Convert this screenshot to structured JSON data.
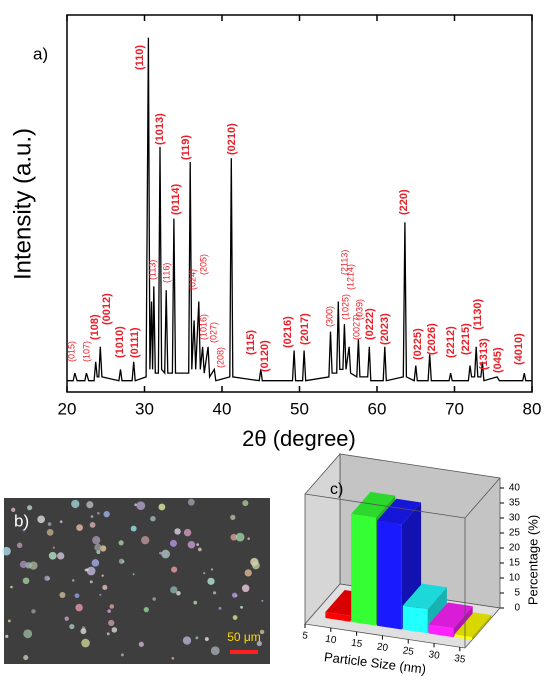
{
  "chart_data": [
    {
      "type": "line",
      "panel_label": "a)",
      "x_label": "2θ (degree)",
      "y_label": "Intensity (a.u.)",
      "color": "#000000",
      "xlim": [
        20,
        80
      ],
      "xticks": [
        20,
        30,
        40,
        50,
        60,
        70,
        80
      ],
      "ylim": [
        0,
        100
      ],
      "x": [
        20,
        20.8,
        21,
        21.3,
        22.3,
        22.5,
        22.8,
        23.5,
        23.7,
        23.9,
        24.1,
        24.3,
        24.5,
        26.7,
        26.9,
        27.1,
        28.4,
        28.6,
        28.8,
        30.2,
        30.5,
        30.7,
        30.9,
        31.05,
        31.2,
        31.4,
        31.8,
        32.0,
        32.2,
        32.6,
        32.8,
        33.0,
        33.6,
        33.8,
        34.0,
        35.7,
        35.9,
        36.1,
        36.4,
        36.6,
        37.0,
        37.2,
        37.5,
        37.7,
        38.2,
        38.4,
        39.0,
        39.2,
        41.0,
        41.2,
        41.4,
        44.8,
        45,
        45.2,
        49.1,
        49.3,
        49.5,
        50.4,
        50.6,
        50.8,
        53.8,
        54,
        54.2,
        54.8,
        55,
        55.2,
        55.6,
        55.8,
        56,
        56.4,
        56.6,
        57.4,
        57.6,
        57.8,
        58.8,
        59,
        59.2,
        60.8,
        61,
        61.2,
        63.4,
        63.6,
        63.8,
        64.8,
        65,
        65.2,
        66.6,
        66.8,
        67,
        69.3,
        69.5,
        69.7,
        71.8,
        72,
        72.2,
        72.6,
        72.8,
        73,
        73.4,
        73.6,
        73.8,
        75.5,
        75.8,
        78.8,
        79,
        79.2,
        80
      ],
      "values": [
        3,
        3,
        5,
        3,
        3,
        5,
        3,
        3,
        8,
        4,
        4,
        12,
        4,
        3,
        6,
        3,
        3,
        8,
        3,
        4,
        94,
        6,
        24,
        6,
        28,
        5,
        5,
        65,
        6,
        5,
        27,
        5,
        5,
        46,
        5,
        5,
        61,
        6,
        19,
        6,
        24,
        6,
        12,
        5,
        12,
        4,
        6,
        3,
        4,
        62,
        4,
        3,
        6,
        3,
        3,
        11,
        3,
        3,
        11,
        3,
        4,
        16,
        5,
        5,
        24,
        6,
        6,
        18,
        6,
        12,
        5,
        4,
        14,
        4,
        4,
        12,
        3,
        3,
        12,
        3,
        4,
        45,
        4,
        3,
        7,
        3,
        3,
        10,
        3,
        3,
        5,
        3,
        3,
        7,
        4,
        4,
        12,
        4,
        4,
        8,
        3,
        4,
        3,
        3,
        5,
        3,
        3
      ],
      "annotation_color": "#e8202a",
      "annotations": [
        "(015)",
        "(107)",
        "(108)",
        "(0012)",
        "(1010)",
        "(0111)",
        "(110)",
        "(1013)",
        "(0114)",
        "(119)",
        "(113)",
        "(116)",
        "(024)",
        "(205)",
        "(1016)",
        "(027)",
        "(208)",
        "(0210)",
        "(115)",
        "(0120)",
        "(0216)",
        "(2017)",
        "(300)",
        "(2113)",
        "(1025)",
        "(1214)",
        "(0027)",
        "(039)",
        "(0222)",
        "(2023)",
        "(220)",
        "(0225)",
        "(2026)",
        "(2212)",
        "(2215)",
        "(1130)",
        "(1313)",
        "(045)",
        "(4010)"
      ]
    },
    {
      "type": "bar3d",
      "panel_label": "c)",
      "x_label": "Particle Size (nm)",
      "y_label": "Percentage (%)",
      "x": [
        10,
        15,
        20,
        25,
        30,
        35
      ],
      "values": [
        2,
        36,
        35,
        8,
        3,
        1
      ],
      "colors": [
        "#ff0000",
        "#33ff33",
        "#1a1aff",
        "#22ffff",
        "#ff22ff",
        "#ffff00"
      ],
      "xlim": [
        5,
        36
      ],
      "xticks": [
        5,
        10,
        15,
        20,
        25,
        30,
        35
      ],
      "ylim": [
        0,
        40
      ],
      "yticks": [
        0,
        5,
        10,
        15,
        20,
        25,
        30,
        35,
        40
      ]
    }
  ],
  "image_panel": {
    "label": "b)",
    "scale_bar": "50 μm"
  }
}
